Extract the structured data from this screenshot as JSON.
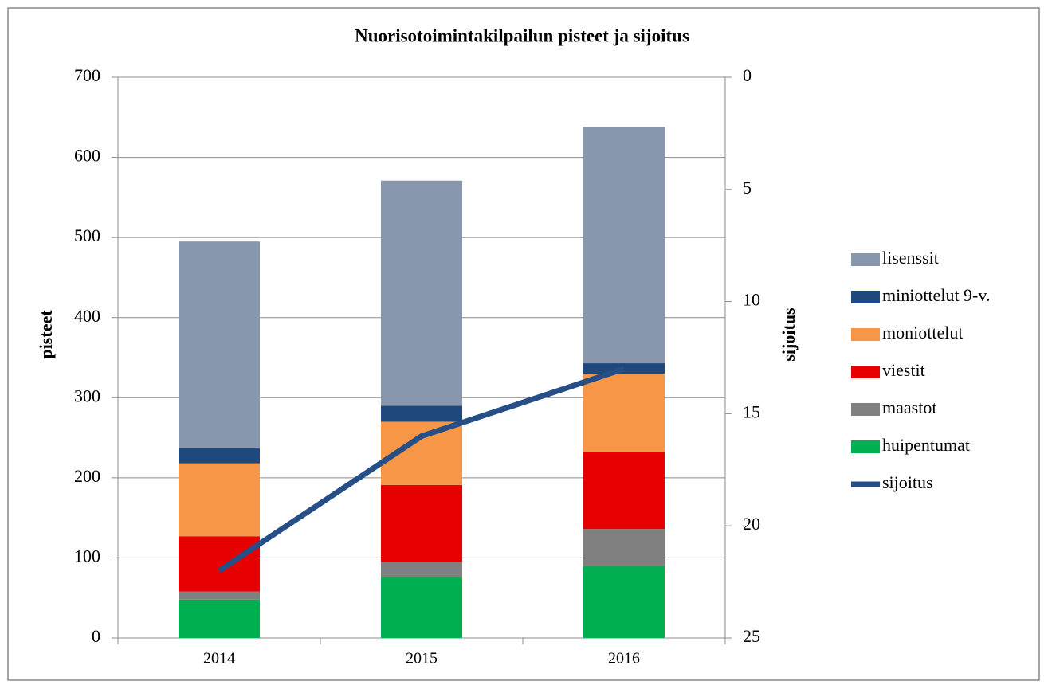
{
  "chart_data": {
    "type": "bar_line",
    "title": "Nuorisotoimintakilpailun pisteet ja sijoitus",
    "ylabel": "pisteet",
    "y2label": "sijoitus",
    "categories": [
      "2014",
      "2015",
      "2016"
    ],
    "series": [
      {
        "name": "huipentumat",
        "color": "#00b050",
        "values": [
          48,
          76,
          90
        ]
      },
      {
        "name": "maastot",
        "color": "#808080",
        "values": [
          10,
          19,
          46
        ]
      },
      {
        "name": "viestit",
        "color": "#e60000",
        "values": [
          69,
          96,
          96
        ]
      },
      {
        "name": "moniottelut",
        "color": "#f79646",
        "values": [
          91,
          79,
          98
        ]
      },
      {
        "name": "miniottelut 9-v.",
        "color": "#1f497d",
        "values": [
          19,
          20,
          13
        ]
      },
      {
        "name": "lisenssit",
        "color": "#8896ae",
        "values": [
          258,
          281,
          295
        ]
      },
      {
        "name": "sijoitus",
        "color": "#254f86",
        "values": [
          22,
          16,
          13
        ],
        "axis": "y2",
        "type": "line"
      }
    ],
    "ylim": [
      0,
      700
    ],
    "yticks": [
      0,
      100,
      200,
      300,
      400,
      500,
      600,
      700
    ],
    "y2lim": [
      0,
      25
    ],
    "y2ticks": [
      0,
      5,
      10,
      15,
      20,
      25
    ],
    "y2_reversed": true,
    "grid": true,
    "legend": "right"
  }
}
